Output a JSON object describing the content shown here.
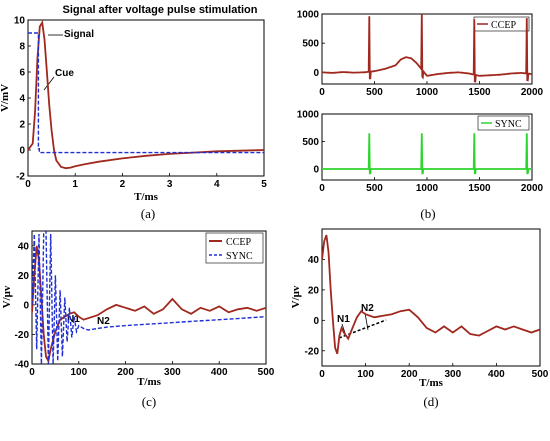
{
  "chart_data": [
    {
      "panel": "a",
      "type": "line",
      "title": "Signal after voltage pulse stimulation",
      "xlabel": "T/ms",
      "ylabel": "V/mV",
      "xlim": [
        0,
        5
      ],
      "ylim": [
        -2,
        10
      ],
      "xticks": [
        "0",
        "1",
        "2",
        "3",
        "4",
        "5"
      ],
      "yticks": [
        "-2",
        "0",
        "2",
        "4",
        "6",
        "8",
        "10"
      ],
      "annotations": [
        "Signal",
        "Cue"
      ],
      "caption": "(a)",
      "series": [
        {
          "color": "#a0281e",
          "style": "solid",
          "x": [
            0,
            0.1,
            0.15,
            0.2,
            0.25,
            0.3,
            0.35,
            0.4,
            0.45,
            0.5,
            0.55,
            0.6,
            0.7,
            0.8,
            0.9,
            1.0,
            1.2,
            1.5,
            2.0,
            2.5,
            3.0,
            3.5,
            4.0,
            4.5,
            5.0
          ],
          "y": [
            0,
            0.5,
            3.0,
            7.0,
            9.5,
            9.8,
            8.5,
            6.0,
            3.5,
            1.5,
            0.0,
            -0.8,
            -1.3,
            -1.4,
            -1.35,
            -1.25,
            -1.1,
            -0.9,
            -0.65,
            -0.45,
            -0.3,
            -0.2,
            -0.1,
            -0.05,
            0.0
          ]
        },
        {
          "color": "#1f2fd4",
          "style": "dashed",
          "x": [
            0,
            0.22,
            0.22,
            0.24,
            0.24,
            5.0
          ],
          "y": [
            9.0,
            9.0,
            0.1,
            0.1,
            -0.2,
            -0.2
          ]
        }
      ]
    },
    {
      "panel": "b-top",
      "type": "line",
      "xlim": [
        0,
        2000
      ],
      "ylim": [
        -200,
        1000
      ],
      "xticks": [
        "0",
        "500",
        "1000",
        "1500",
        "2000"
      ],
      "yticks": [
        "0",
        "500",
        "1000"
      ],
      "legend": [
        "CCEP"
      ],
      "legend_position": "top-right",
      "series": [
        {
          "name": "CCEP",
          "color": "#a0281e",
          "spikes_at": [
            450,
            950,
            1450,
            1950
          ],
          "spike_height": 950,
          "x": [
            0,
            100,
            200,
            300,
            400,
            500,
            600,
            700,
            750,
            800,
            850,
            900,
            1000,
            1100,
            1200,
            1300,
            1400,
            1500,
            1600,
            1700,
            1800,
            1900,
            2000
          ],
          "y": [
            0,
            -10,
            5,
            -5,
            0,
            20,
            60,
            120,
            220,
            260,
            240,
            160,
            -60,
            -30,
            -10,
            0,
            -20,
            -60,
            -50,
            -40,
            -20,
            -10,
            -30
          ]
        }
      ]
    },
    {
      "panel": "b-bottom",
      "type": "line",
      "xlim": [
        0,
        2000
      ],
      "ylim": [
        -200,
        1000
      ],
      "xticks": [
        "0",
        "500",
        "1000",
        "1500",
        "2000"
      ],
      "yticks": [
        "0",
        "500",
        "1000"
      ],
      "legend": [
        "SYNC"
      ],
      "legend_position": "top-right",
      "caption": "(b)",
      "series": [
        {
          "name": "SYNC",
          "color": "#2fd42f",
          "spikes_at": [
            450,
            950,
            1450,
            1950
          ],
          "spike_height": 650,
          "x": [
            0,
            2000
          ],
          "y": [
            0,
            0
          ]
        }
      ]
    },
    {
      "panel": "c",
      "type": "line",
      "xlabel": "T/ms",
      "ylabel": "V/μv",
      "xlim": [
        0,
        500
      ],
      "ylim": [
        -40,
        50
      ],
      "xticks": [
        "0",
        "100",
        "200",
        "300",
        "400",
        "500"
      ],
      "yticks": [
        "-40",
        "-20",
        "0",
        "20",
        "40"
      ],
      "legend": [
        "CCEP",
        "SYNC"
      ],
      "legend_position": "top-right",
      "annotations": [
        "N1",
        "N2"
      ],
      "caption": "(c)",
      "series": [
        {
          "name": "CCEP",
          "color": "#a0281e",
          "style": "solid",
          "x": [
            0,
            5,
            10,
            15,
            20,
            25,
            30,
            35,
            40,
            50,
            60,
            70,
            80,
            90,
            100,
            110,
            120,
            140,
            160,
            180,
            200,
            220,
            240,
            260,
            280,
            300,
            320,
            340,
            360,
            380,
            400,
            420,
            440,
            460,
            480,
            500
          ],
          "y": [
            -5,
            20,
            40,
            30,
            5,
            -20,
            -35,
            -38,
            -30,
            -18,
            -10,
            -8,
            -6,
            -5,
            -8,
            -10,
            -9,
            -7,
            -3,
            0,
            -2,
            -4,
            -1,
            -6,
            -3,
            4,
            -3,
            -6,
            -2,
            -4,
            -1,
            -5,
            -3,
            -2,
            -4,
            -2
          ]
        },
        {
          "name": "SYNC",
          "color": "#1f2fd4",
          "style": "dashed",
          "x": [
            0,
            5,
            10,
            15,
            20,
            25,
            30,
            35,
            40,
            45,
            50,
            55,
            60,
            65,
            70,
            75,
            80,
            85,
            90,
            95,
            100,
            110,
            120,
            140,
            160,
            200,
            250,
            300,
            350,
            400,
            450,
            500
          ],
          "y": [
            0,
            48,
            -30,
            48,
            -40,
            48,
            50,
            -40,
            48,
            -40,
            20,
            -38,
            10,
            -35,
            5,
            -25,
            -2,
            -22,
            -8,
            -18,
            -14,
            -16,
            -17,
            -16,
            -15,
            -14,
            -13,
            -12,
            -11,
            -10,
            -9,
            -8
          ]
        }
      ]
    },
    {
      "panel": "d",
      "type": "line",
      "xlabel": "T/ms",
      "ylabel": "V/μv",
      "xlim": [
        0,
        500
      ],
      "ylim": [
        -30,
        60
      ],
      "xticks": [
        "0",
        "100",
        "200",
        "300",
        "400",
        "500"
      ],
      "yticks": [
        "-20",
        "0",
        "20",
        "40"
      ],
      "annotations": [
        "N1",
        "N2"
      ],
      "caption": "(d)",
      "series": [
        {
          "color": "#a0281e",
          "style": "solid",
          "x": [
            0,
            5,
            10,
            15,
            20,
            25,
            30,
            35,
            40,
            45,
            50,
            60,
            70,
            80,
            90,
            100,
            120,
            140,
            160,
            180,
            200,
            220,
            240,
            260,
            280,
            300,
            320,
            340,
            360,
            380,
            400,
            420,
            440,
            460,
            480,
            500
          ],
          "y": [
            40,
            52,
            56,
            45,
            20,
            0,
            -18,
            -22,
            -10,
            -5,
            -8,
            -12,
            -5,
            2,
            6,
            4,
            2,
            3,
            4,
            6,
            7,
            2,
            -5,
            -8,
            -4,
            -8,
            -4,
            -9,
            -10,
            -7,
            -4,
            -6,
            -4,
            -6,
            -8,
            -6
          ]
        }
      ]
    }
  ],
  "labels": {
    "cap_a": "(a)",
    "cap_b": "(b)",
    "cap_c": "(c)",
    "cap_d": "(d)",
    "n1": "N1",
    "n2": "N2"
  }
}
